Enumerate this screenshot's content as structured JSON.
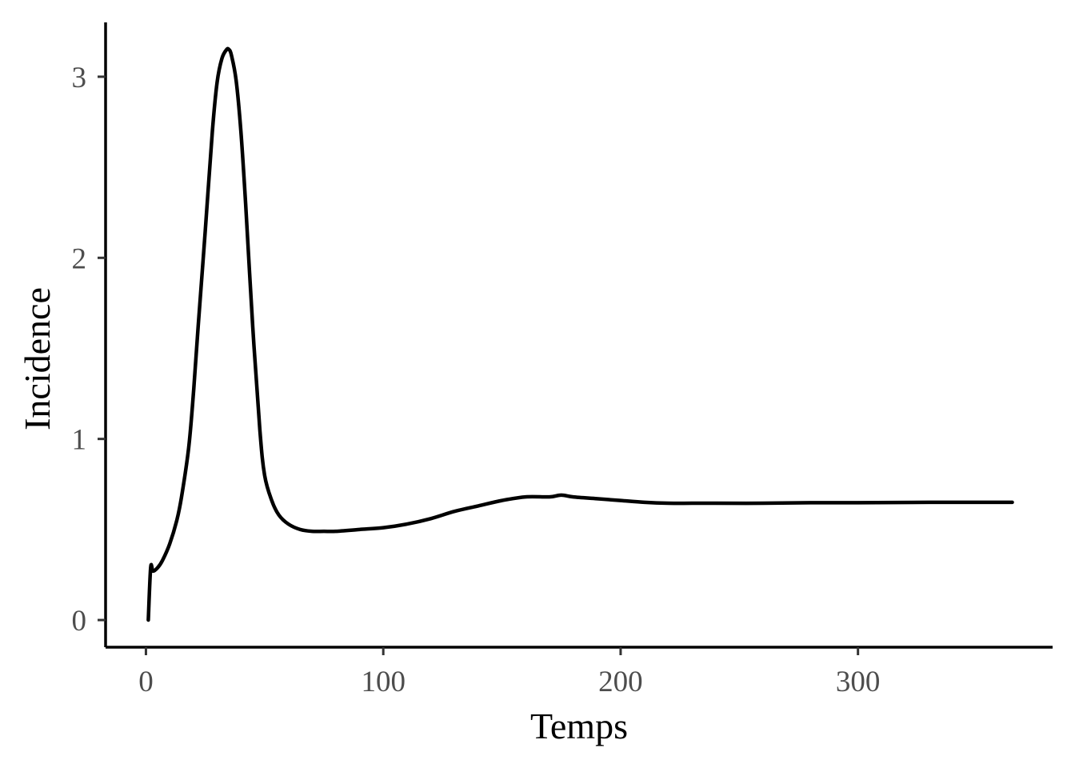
{
  "chart_data": {
    "type": "line",
    "title": "",
    "xlabel": "Temps",
    "ylabel": "Incidence",
    "xlim": [
      -17,
      382
    ],
    "ylim": [
      -0.15,
      3.3
    ],
    "x_ticks": [
      {
        "value": 0,
        "label": "0"
      },
      {
        "value": 100,
        "label": "100"
      },
      {
        "value": 200,
        "label": "200"
      },
      {
        "value": 300,
        "label": "300"
      }
    ],
    "y_ticks": [
      {
        "value": 0,
        "label": "0"
      },
      {
        "value": 1,
        "label": "1"
      },
      {
        "value": 2,
        "label": "2"
      },
      {
        "value": 3,
        "label": "3"
      }
    ],
    "grid": false,
    "legend": "none",
    "series": [
      {
        "color": "#000000",
        "x": [
          1,
          2,
          3,
          5,
          7,
          10,
          13,
          15,
          18,
          20,
          22,
          25,
          28,
          30,
          32,
          34,
          35,
          36,
          38,
          40,
          42,
          45,
          48,
          50,
          53,
          56,
          60,
          65,
          70,
          75,
          80,
          90,
          100,
          110,
          120,
          130,
          140,
          150,
          160,
          170,
          175,
          180,
          190,
          200,
          210,
          220,
          230,
          240,
          260,
          280,
          300,
          330,
          365
        ],
        "y": [
          0.0,
          0.29,
          0.27,
          0.29,
          0.33,
          0.42,
          0.55,
          0.68,
          0.95,
          1.25,
          1.62,
          2.15,
          2.7,
          2.97,
          3.1,
          3.15,
          3.15,
          3.12,
          2.98,
          2.7,
          2.3,
          1.62,
          1.05,
          0.8,
          0.66,
          0.58,
          0.53,
          0.5,
          0.49,
          0.49,
          0.49,
          0.5,
          0.51,
          0.53,
          0.56,
          0.6,
          0.63,
          0.66,
          0.68,
          0.68,
          0.69,
          0.68,
          0.67,
          0.66,
          0.65,
          0.645,
          0.645,
          0.645,
          0.645,
          0.648,
          0.648,
          0.65,
          0.65
        ]
      }
    ]
  }
}
